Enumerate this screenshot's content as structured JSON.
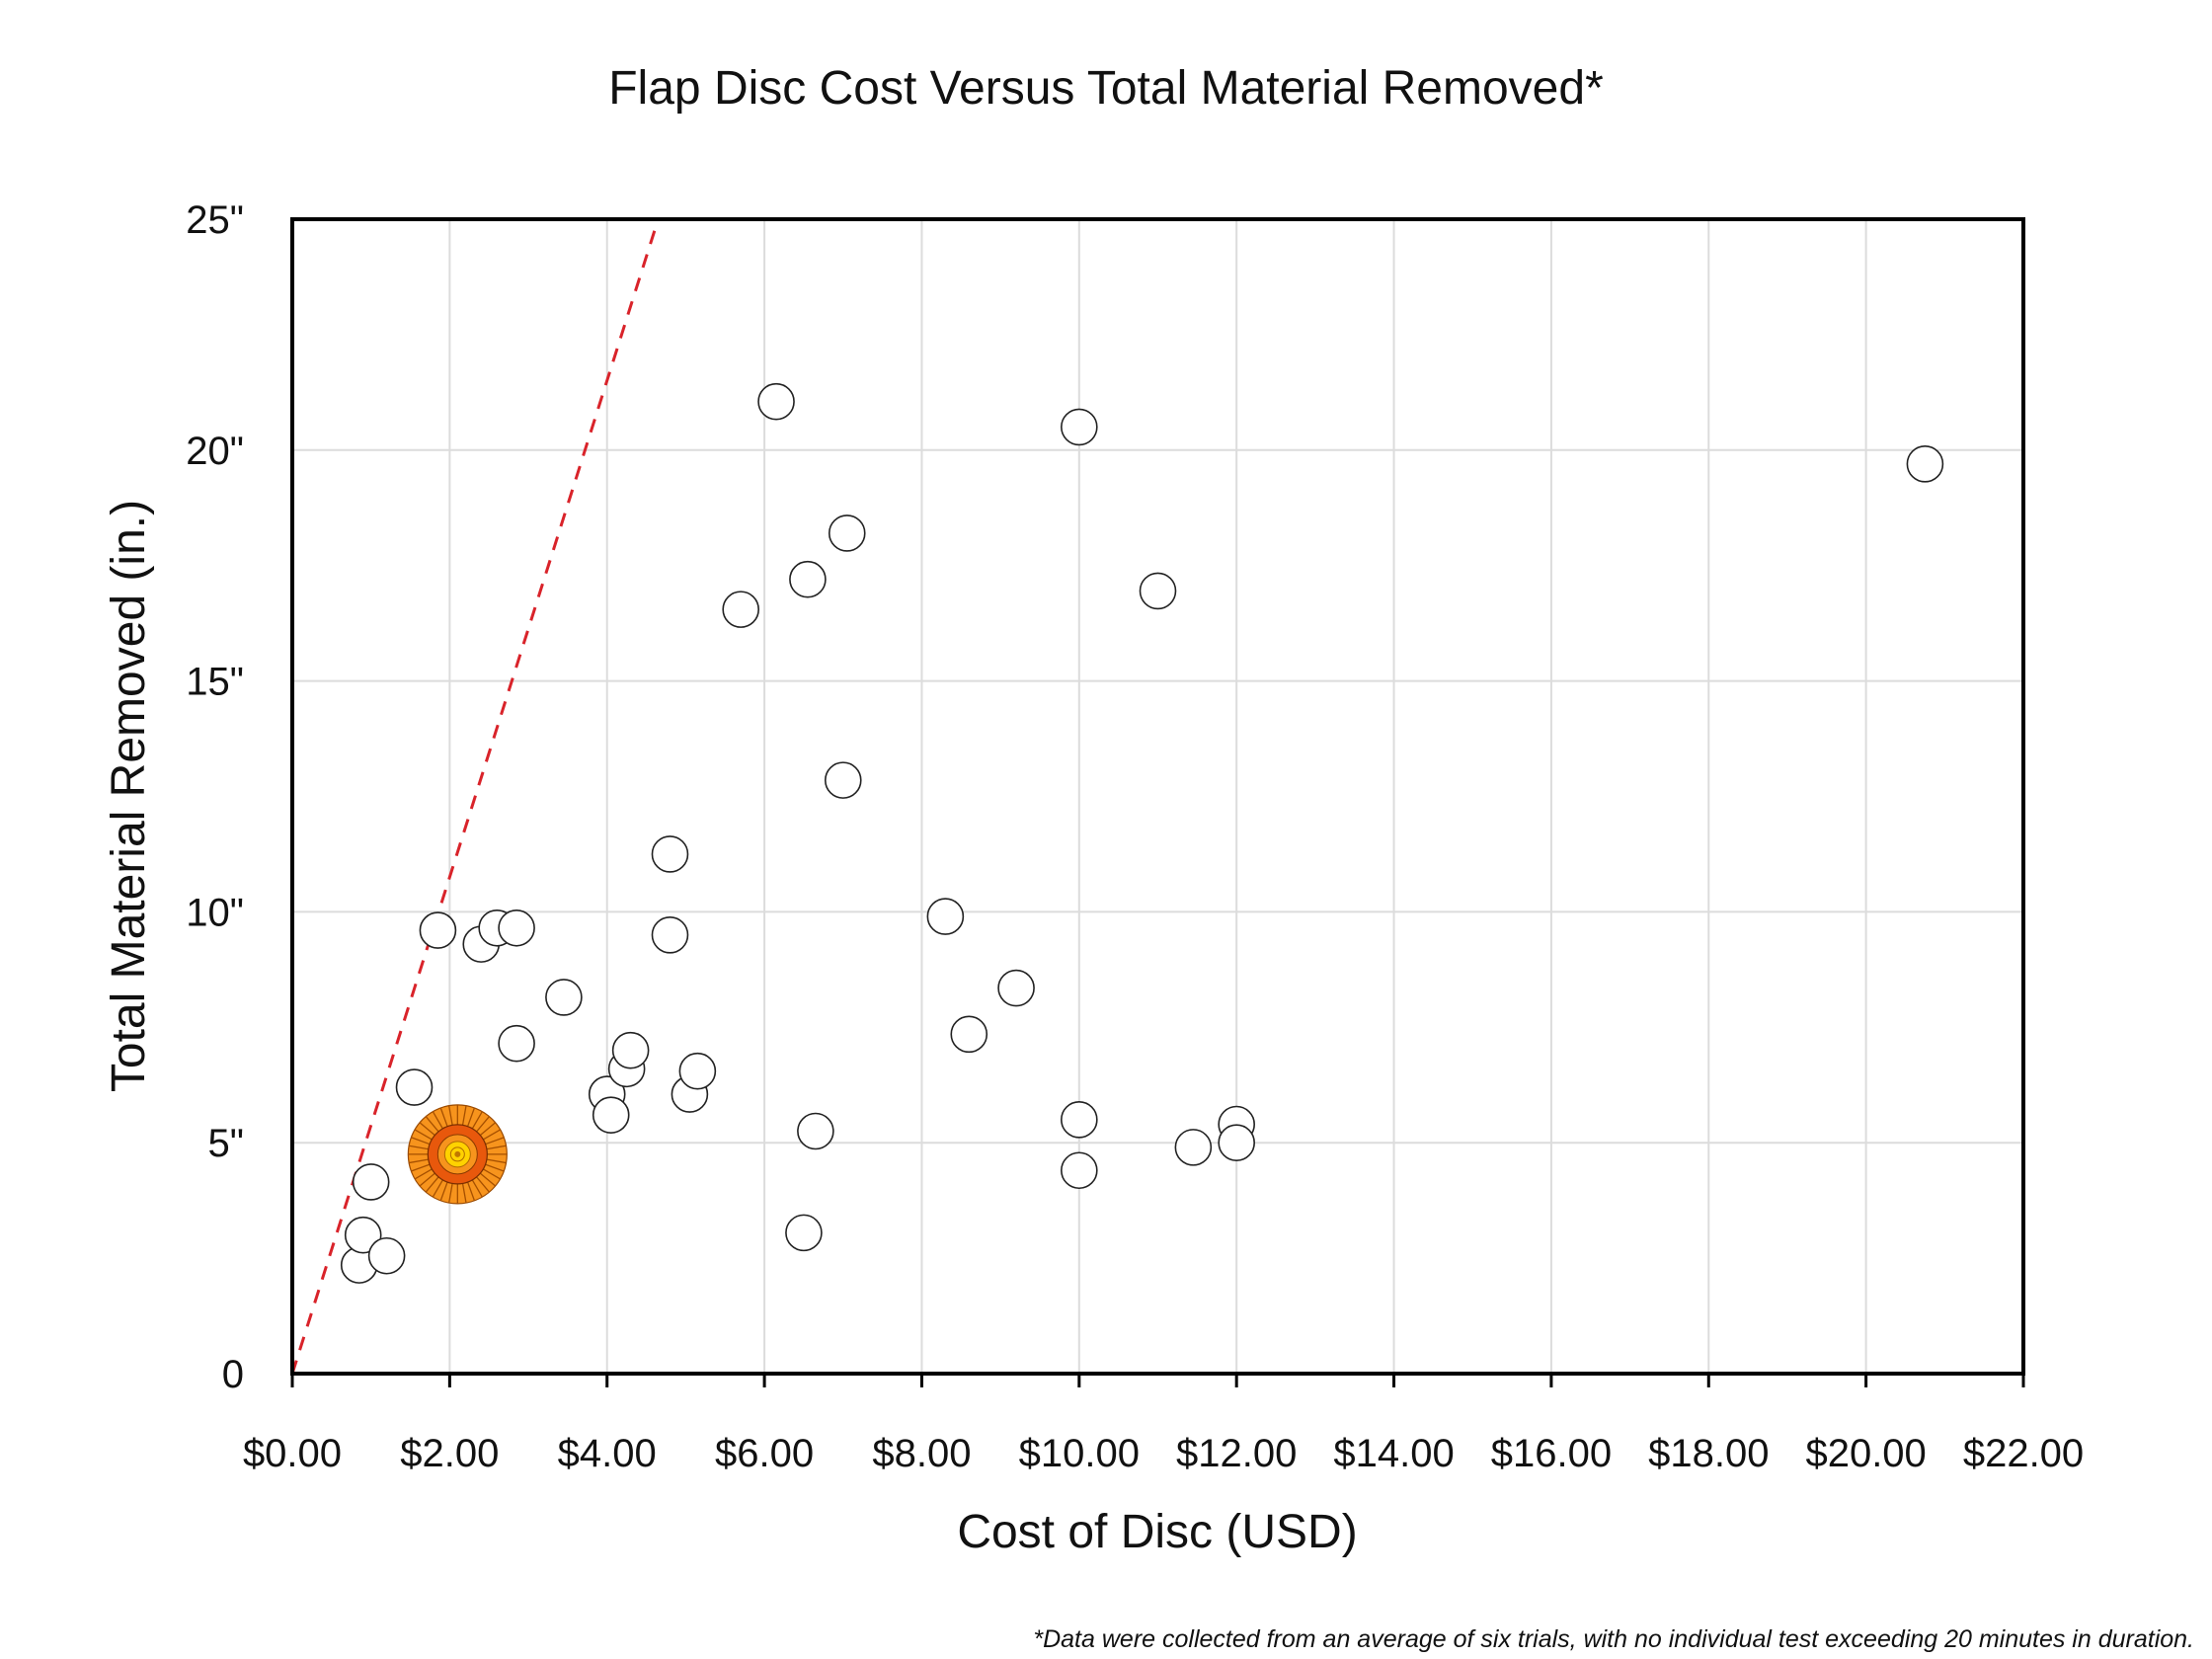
{
  "chart_data": {
    "type": "scatter",
    "title": "Flap Disc Cost Versus Total Material Removed*",
    "xlabel": "Cost of Disc (USD)",
    "ylabel": "Total Material Removed (in.)",
    "xlim": [
      0,
      22
    ],
    "ylim": [
      0,
      25
    ],
    "x_ticks": [
      {
        "value": 0,
        "label": "$0.00"
      },
      {
        "value": 2,
        "label": "$2.00"
      },
      {
        "value": 4,
        "label": "$4.00"
      },
      {
        "value": 6,
        "label": "$6.00"
      },
      {
        "value": 8,
        "label": "$8.00"
      },
      {
        "value": 10,
        "label": "$10.00"
      },
      {
        "value": 12,
        "label": "$12.00"
      },
      {
        "value": 14,
        "label": "$14.00"
      },
      {
        "value": 16,
        "label": "$16.00"
      },
      {
        "value": 18,
        "label": "$18.00"
      },
      {
        "value": 20,
        "label": "$20.00"
      },
      {
        "value": 22,
        "label": "$22.00"
      }
    ],
    "y_ticks": [
      {
        "value": 0,
        "label": "0"
      },
      {
        "value": 5,
        "label": "5\""
      },
      {
        "value": 10,
        "label": "10\""
      },
      {
        "value": 15,
        "label": "15\""
      },
      {
        "value": 20,
        "label": "20\""
      },
      {
        "value": 25,
        "label": "25\""
      }
    ],
    "grid": true,
    "series": [
      {
        "points": [
          {
            "x": 0.85,
            "y": 2.35
          },
          {
            "x": 0.9,
            "y": 3.0
          },
          {
            "x": 1.2,
            "y": 2.55
          },
          {
            "x": 1.0,
            "y": 4.15
          },
          {
            "x": 1.55,
            "y": 6.2
          },
          {
            "x": 1.85,
            "y": 9.6
          },
          {
            "x": 2.4,
            "y": 9.3
          },
          {
            "x": 2.6,
            "y": 9.65
          },
          {
            "x": 2.85,
            "y": 9.65
          },
          {
            "x": 2.85,
            "y": 7.15
          },
          {
            "x": 3.45,
            "y": 8.15
          },
          {
            "x": 4.0,
            "y": 6.05
          },
          {
            "x": 4.05,
            "y": 5.6
          },
          {
            "x": 4.25,
            "y": 6.6
          },
          {
            "x": 4.3,
            "y": 7.0
          },
          {
            "x": 4.8,
            "y": 11.25
          },
          {
            "x": 4.8,
            "y": 9.5
          },
          {
            "x": 5.05,
            "y": 6.05
          },
          {
            "x": 5.15,
            "y": 6.55
          },
          {
            "x": 5.7,
            "y": 16.55
          },
          {
            "x": 6.15,
            "y": 21.05
          },
          {
            "x": 6.5,
            "y": 3.05
          },
          {
            "x": 6.55,
            "y": 17.2
          },
          {
            "x": 6.65,
            "y": 5.25
          },
          {
            "x": 7.0,
            "y": 12.85
          },
          {
            "x": 7.05,
            "y": 18.2
          },
          {
            "x": 8.3,
            "y": 9.9
          },
          {
            "x": 8.6,
            "y": 7.35
          },
          {
            "x": 9.2,
            "y": 8.35
          },
          {
            "x": 10.0,
            "y": 20.5
          },
          {
            "x": 10.0,
            "y": 5.5
          },
          {
            "x": 10.0,
            "y": 4.4
          },
          {
            "x": 11.0,
            "y": 16.95
          },
          {
            "x": 11.45,
            "y": 4.9
          },
          {
            "x": 12.0,
            "y": 5.4
          },
          {
            "x": 12.0,
            "y": 5.0
          },
          {
            "x": 20.75,
            "y": 19.7
          }
        ]
      }
    ],
    "highlight_point": {
      "x": 2.1,
      "y": 4.75,
      "colors": [
        "#f7941d",
        "#e8580c",
        "#ffd200"
      ]
    },
    "reference_line": {
      "style": "dashed",
      "color": "#d9232a",
      "x": [
        0,
        4.65
      ],
      "y": [
        0,
        25
      ]
    },
    "footnote": "*Data were collected from an average of six trials, with no individual test exceeding 20 minutes in duration."
  }
}
